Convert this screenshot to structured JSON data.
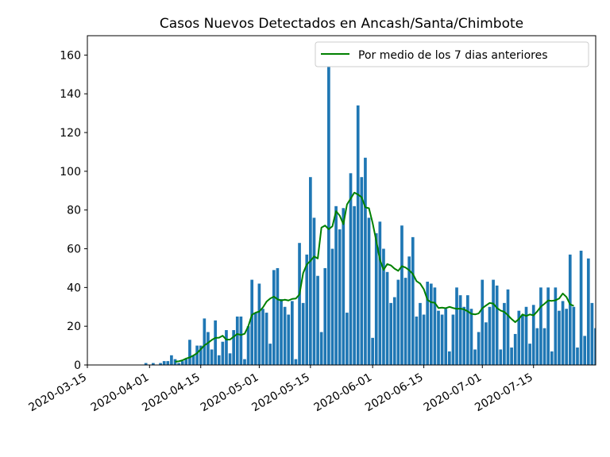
{
  "chart_data": {
    "type": "bar",
    "title": "Casos Nuevos Detectados en Ancash/Santa/Chimbote",
    "xlabel": "",
    "ylabel": "",
    "x_start": "2020-03-15",
    "x_end": "2020-08-01",
    "ylim": [
      0,
      170
    ],
    "grid": false,
    "legend_position": "top-right",
    "bar_color": "#1f77b4",
    "line_color": "#008000",
    "y_ticks": [
      0,
      20,
      40,
      60,
      80,
      100,
      120,
      140,
      160
    ],
    "x_ticks": [
      "2020-03-15",
      "2020-04-01",
      "2020-04-15",
      "2020-05-01",
      "2020-05-15",
      "2020-06-01",
      "2020-06-15",
      "2020-07-01",
      "2020-07-15"
    ],
    "series": [
      {
        "name": "",
        "type": "bar",
        "start_date": "2020-03-31",
        "values": [
          1,
          0,
          1,
          0,
          1,
          2,
          2,
          5,
          3,
          1,
          2,
          3,
          13,
          5,
          10,
          10,
          24,
          17,
          8,
          23,
          5,
          12,
          18,
          6,
          18,
          25,
          25,
          3,
          20,
          44,
          27,
          42,
          29,
          27,
          11,
          49,
          50,
          34,
          30,
          26,
          33,
          3,
          63,
          32,
          57,
          97,
          76,
          46,
          17,
          50,
          163,
          60,
          82,
          70,
          81,
          27,
          99,
          82,
          134,
          97,
          107,
          76,
          14,
          68,
          74,
          60,
          48,
          32,
          35,
          44,
          72,
          45,
          56,
          66,
          25,
          32,
          26,
          43,
          42,
          40,
          28,
          26,
          29,
          7,
          26,
          40,
          36,
          30,
          36,
          29,
          8,
          17,
          44,
          22,
          30,
          44,
          41,
          8,
          32,
          39,
          9,
          16,
          28,
          26,
          30,
          11,
          31,
          19,
          40,
          19,
          40,
          7,
          40,
          28,
          33,
          29,
          57,
          30,
          9,
          59,
          15,
          55,
          32,
          19
        ]
      },
      {
        "name": "Por medio de los 7 dias anteriores",
        "type": "line",
        "start_date": "2020-04-08",
        "values": [
          1.7,
          1.9,
          2.4,
          3.3,
          3.9,
          4.9,
          6.1,
          8.1,
          10.1,
          11.4,
          12.9,
          14.0,
          14.1,
          15.1,
          13.1,
          13.1,
          14.6,
          16.0,
          15.5,
          16.1,
          20.0,
          25.9,
          27.0,
          27.6,
          29.7,
          32.7,
          34.3,
          35.3,
          33.9,
          33.3,
          33.7,
          33.3,
          34.1,
          34.3,
          36.4,
          47.4,
          51.9,
          53.7,
          56.0,
          55.0,
          70.9,
          72.0,
          70.1,
          71.6,
          79.4,
          77.1,
          72.7,
          82.9,
          85.9,
          89.0,
          88.0,
          86.6,
          81.4,
          80.9,
          73.3,
          64.1,
          54.3,
          49.1,
          52.1,
          51.4,
          49.7,
          48.6,
          51.0,
          50.3,
          48.9,
          47.0,
          43.3,
          42.0,
          39.1,
          33.6,
          32.4,
          32.1,
          29.4,
          29.6,
          29.3,
          30.0,
          29.4,
          29.0,
          29.1,
          28.7,
          27.7,
          26.4,
          26.1,
          26.6,
          29.3,
          30.7,
          32.0,
          31.7,
          29.4,
          28.1,
          27.4,
          25.7,
          23.7,
          22.1,
          23.7,
          26.1,
          25.3,
          26.1,
          25.6,
          27.6,
          30.1,
          31.6,
          33.3,
          33.1,
          33.4,
          34.3,
          36.9,
          35.1,
          31.3,
          30.5
        ]
      }
    ]
  }
}
